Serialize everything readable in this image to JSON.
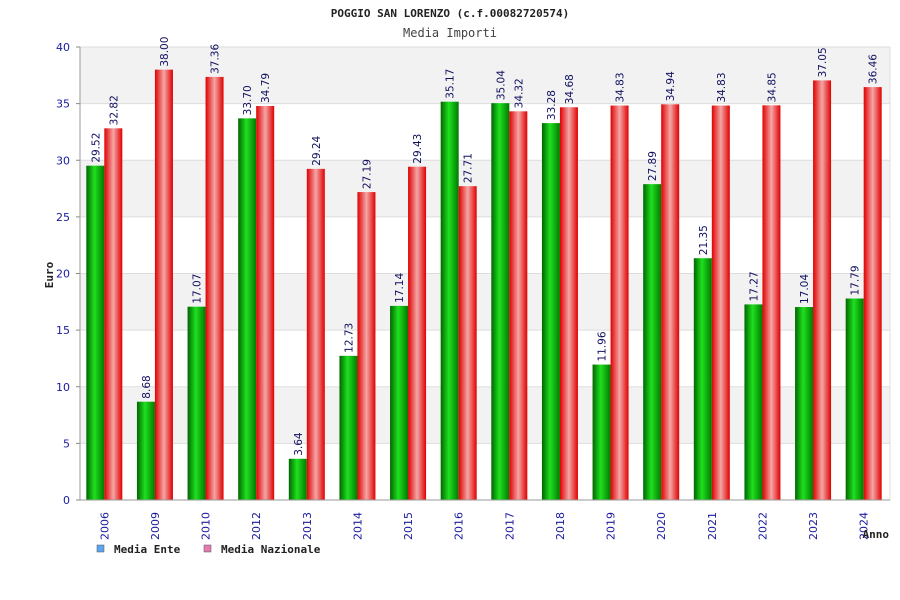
{
  "chart_data": {
    "type": "bar",
    "title": "POGGIO SAN LORENZO (c.f.00082720574)",
    "subtitle": "Media Importi",
    "ylabel": "Euro",
    "xlabel": "Anno",
    "ylim": [
      0,
      40
    ],
    "yticks": [
      0,
      5,
      10,
      15,
      20,
      25,
      30,
      35,
      40
    ],
    "grid": true,
    "legend_position": "bottom-left",
    "categories": [
      "2006",
      "2009",
      "2010",
      "2012",
      "2013",
      "2014",
      "2015",
      "2016",
      "2017",
      "2018",
      "2019",
      "2020",
      "2021",
      "2022",
      "2023",
      "2024"
    ],
    "series": [
      {
        "name": "Media Ente",
        "values": [
          29.52,
          8.68,
          17.07,
          33.7,
          3.64,
          12.73,
          17.14,
          35.17,
          35.04,
          33.28,
          11.96,
          27.89,
          21.35,
          17.27,
          17.04,
          17.79
        ],
        "labels": [
          "29.52",
          "8.68",
          "17.07",
          "33.70",
          "3.64",
          "12.73",
          "17.14",
          "35.17",
          "35.04",
          "33.28",
          "11.96",
          "27.89",
          "21.35",
          "17.27",
          "17.04",
          "17.79"
        ],
        "color": "#00b400",
        "legend_color": "#5ba6f0"
      },
      {
        "name": "Media Nazionale",
        "values": [
          32.82,
          38.0,
          37.36,
          34.79,
          29.24,
          27.19,
          29.43,
          27.71,
          34.32,
          34.68,
          34.83,
          34.94,
          34.83,
          34.85,
          37.05,
          36.46
        ],
        "labels": [
          "32.82",
          "38.00",
          "37.36",
          "34.79",
          "29.24",
          "27.19",
          "29.43",
          "27.71",
          "34.32",
          "34.68",
          "34.83",
          "34.94",
          "34.83",
          "34.85",
          "37.05",
          "36.46"
        ],
        "color": "#ee1111",
        "legend_color": "#e27bb0"
      }
    ]
  }
}
